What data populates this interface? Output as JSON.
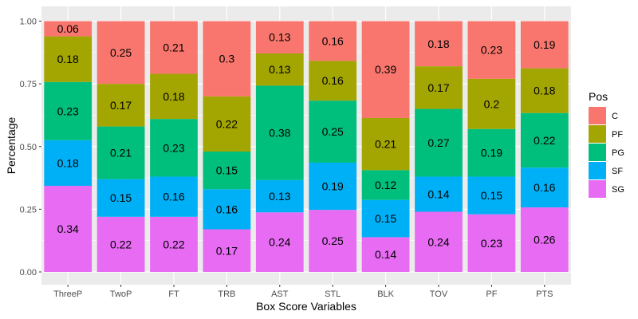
{
  "chart_data": {
    "type": "bar",
    "stacked": true,
    "title": "",
    "xlabel": "Box Score Variables",
    "ylabel": "Percentage",
    "ylim": [
      0,
      1
    ],
    "yticks": [
      "0.00",
      "0.25",
      "0.50",
      "0.75",
      "1.00"
    ],
    "ytick_values": [
      0,
      0.25,
      0.5,
      0.75,
      1
    ],
    "grid": true,
    "legend_title": "Pos",
    "legend_position": "right",
    "categories": [
      "ThreeP",
      "TwoP",
      "FT",
      "TRB",
      "AST",
      "STL",
      "BLK",
      "TOV",
      "PF",
      "PTS"
    ],
    "series": [
      {
        "name": "SG",
        "color": "#E76BF3",
        "values": [
          0.34,
          0.22,
          0.22,
          0.17,
          0.24,
          0.25,
          0.14,
          0.24,
          0.23,
          0.26
        ]
      },
      {
        "name": "SF",
        "color": "#00B0F6",
        "values": [
          0.18,
          0.15,
          0.16,
          0.16,
          0.13,
          0.19,
          0.15,
          0.14,
          0.15,
          0.16
        ]
      },
      {
        "name": "PG",
        "color": "#00BF7D",
        "values": [
          0.23,
          0.21,
          0.23,
          0.15,
          0.38,
          0.25,
          0.12,
          0.27,
          0.19,
          0.22
        ]
      },
      {
        "name": "PF",
        "color": "#A3A500",
        "values": [
          0.18,
          0.17,
          0.18,
          0.22,
          0.13,
          0.16,
          0.21,
          0.17,
          0.2,
          0.18
        ]
      },
      {
        "name": "C",
        "color": "#F8766D",
        "values": [
          0.06,
          0.25,
          0.21,
          0.3,
          0.13,
          0.16,
          0.39,
          0.18,
          0.23,
          0.19
        ]
      }
    ],
    "legend_order": [
      "C",
      "PF",
      "PG",
      "SF",
      "SG"
    ]
  }
}
